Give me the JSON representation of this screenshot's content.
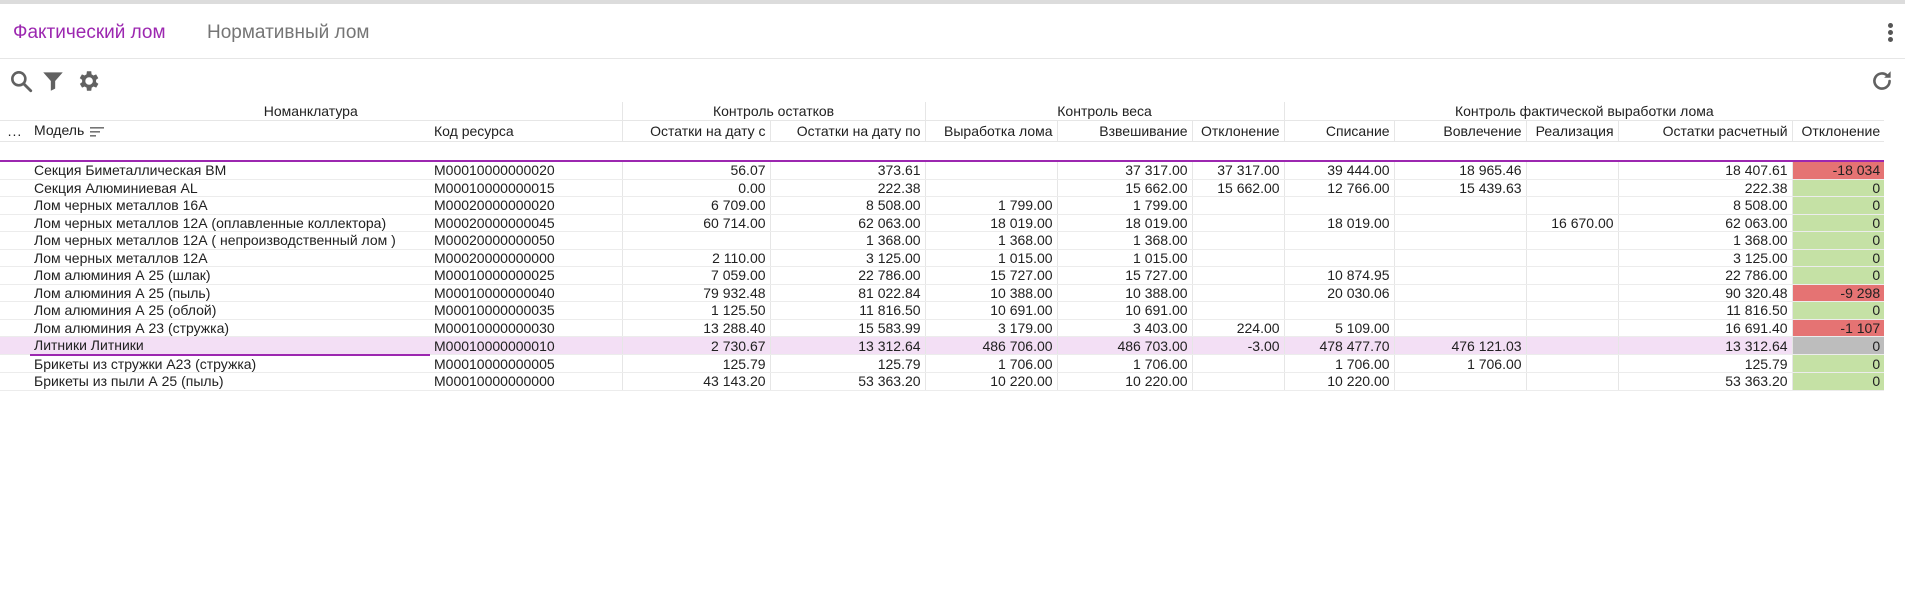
{
  "tabs": [
    {
      "label": "Фактический лом"
    },
    {
      "label": "Нормативный лом"
    }
  ],
  "toolbar": {
    "icons": [
      "search-icon",
      "filter-icon",
      "gear-icon",
      "refresh-icon"
    ]
  },
  "table": {
    "groups": {
      "nomenclature": "Номанклатура",
      "balance": "Контроль остатков",
      "weight": "Контроль веса",
      "output": "Контроль фактической выработки лома"
    },
    "columns": {
      "menu": "...",
      "model": "Модель",
      "code": "Код ресурса",
      "bal_from": "Остатки на дату с",
      "bal_to": "Остатки на дату по",
      "yield": "Выработка лома",
      "weighing": "Взвешивание",
      "deviation1": "Отклонение",
      "writeoff": "Списание",
      "involve": "Вовлечение",
      "sale": "Реализация",
      "calc": "Остатки  расчетный",
      "deviation2": "Отклонение"
    },
    "rows": [
      {
        "model": "Секция Биметаллическая ВМ",
        "code": "M00010000000020",
        "bal_from": "56.07",
        "bal_to": "373.61",
        "yield": "",
        "weighing": "37 317.00",
        "dev1": "37 317.00",
        "writeoff": "39 444.00",
        "involve": "18 965.46",
        "sale": "",
        "calc": "18 407.61",
        "dev2": "-18 034",
        "status": "bad"
      },
      {
        "model": "Секция Алюминиевая AL",
        "code": "M00010000000015",
        "bal_from": "0.00",
        "bal_to": "222.38",
        "yield": "",
        "weighing": "15 662.00",
        "dev1": "15 662.00",
        "writeoff": "12 766.00",
        "involve": "15 439.63",
        "sale": "",
        "calc": "222.38",
        "dev2": "0",
        "status": "ok"
      },
      {
        "model": "Лом черных металлов 16А",
        "code": "M00020000000020",
        "bal_from": "6 709.00",
        "bal_to": "8 508.00",
        "yield": "1 799.00",
        "weighing": "1 799.00",
        "dev1": "",
        "writeoff": "",
        "involve": "",
        "sale": "",
        "calc": "8 508.00",
        "dev2": "0",
        "status": "ok"
      },
      {
        "model": "Лом черных металлов 12А (оплавленные коллектора)",
        "code": "M00020000000045",
        "bal_from": "60 714.00",
        "bal_to": "62 063.00",
        "yield": "18 019.00",
        "weighing": "18 019.00",
        "dev1": "",
        "writeoff": "18 019.00",
        "involve": "",
        "sale": "16 670.00",
        "calc": "62 063.00",
        "dev2": "0",
        "status": "ok"
      },
      {
        "model": "Лом черных металлов 12А ( непроизводственный лом )",
        "code": "M00020000000050",
        "bal_from": "",
        "bal_to": "1 368.00",
        "yield": "1 368.00",
        "weighing": "1 368.00",
        "dev1": "",
        "writeoff": "",
        "involve": "",
        "sale": "",
        "calc": "1 368.00",
        "dev2": "0",
        "status": "ok"
      },
      {
        "model": "Лом черных металлов 12А",
        "code": "M00020000000000",
        "bal_from": "2 110.00",
        "bal_to": "3 125.00",
        "yield": "1 015.00",
        "weighing": "1 015.00",
        "dev1": "",
        "writeoff": "",
        "involve": "",
        "sale": "",
        "calc": "3 125.00",
        "dev2": "0",
        "status": "ok"
      },
      {
        "model": "Лом алюминия А 25 (шлак)",
        "code": "M00010000000025",
        "bal_from": "7 059.00",
        "bal_to": "22 786.00",
        "yield": "15 727.00",
        "weighing": "15 727.00",
        "dev1": "",
        "writeoff": "10 874.95",
        "involve": "",
        "sale": "",
        "calc": "22 786.00",
        "dev2": "0",
        "status": "ok"
      },
      {
        "model": "Лом алюминия А 25 (пыль)",
        "code": "M00010000000040",
        "bal_from": "79 932.48",
        "bal_to": "81 022.84",
        "yield": "10 388.00",
        "weighing": "10 388.00",
        "dev1": "",
        "writeoff": "20 030.06",
        "involve": "",
        "sale": "",
        "calc": "90 320.48",
        "dev2": "-9 298",
        "status": "bad"
      },
      {
        "model": "Лом алюминия А 25 (облой)",
        "code": "M00010000000035",
        "bal_from": "1 125.50",
        "bal_to": "11 816.50",
        "yield": "10 691.00",
        "weighing": "10 691.00",
        "dev1": "",
        "writeoff": "",
        "involve": "",
        "sale": "",
        "calc": "11 816.50",
        "dev2": "0",
        "status": "ok"
      },
      {
        "model": "Лом алюминия А 23 (стружка)",
        "code": "M00010000000030",
        "bal_from": "13 288.40",
        "bal_to": "15 583.99",
        "yield": "3 179.00",
        "weighing": "3 403.00",
        "dev1": "224.00",
        "writeoff": "5 109.00",
        "involve": "",
        "sale": "",
        "calc": "16 691.40",
        "dev2": "-1 107",
        "status": "bad"
      },
      {
        "model": "Литники Литники",
        "code": "M00010000000010",
        "bal_from": "2 730.67",
        "bal_to": "13 312.64",
        "yield": "486 706.00",
        "weighing": "486 703.00",
        "dev1": "-3.00",
        "writeoff": "478 477.70",
        "involve": "476 121.03",
        "sale": "",
        "calc": "13 312.64",
        "dev2": "0",
        "status": "neutral",
        "selected": true
      },
      {
        "model": "Брикеты из стружки А23 (стружка)",
        "code": "M00010000000005",
        "bal_from": "125.79",
        "bal_to": "125.79",
        "yield": "1 706.00",
        "weighing": "1 706.00",
        "dev1": "",
        "writeoff": "1 706.00",
        "involve": "1 706.00",
        "sale": "",
        "calc": "125.79",
        "dev2": "0",
        "status": "ok"
      },
      {
        "model": "Брикеты из пыли А 25 (пыль)",
        "code": "M00010000000000",
        "bal_from": "43 143.20",
        "bal_to": "53 363.20",
        "yield": "10 220.00",
        "weighing": "10 220.00",
        "dev1": "",
        "writeoff": "10 220.00",
        "involve": "",
        "sale": "",
        "calc": "53 363.20",
        "dev2": "0",
        "status": "ok"
      }
    ]
  },
  "colors": {
    "accent": "#9c27b0",
    "ok": "#c5e1a5",
    "bad": "#e57373",
    "neutral": "#bdbdbd",
    "selected_row": "#f3dff5"
  }
}
